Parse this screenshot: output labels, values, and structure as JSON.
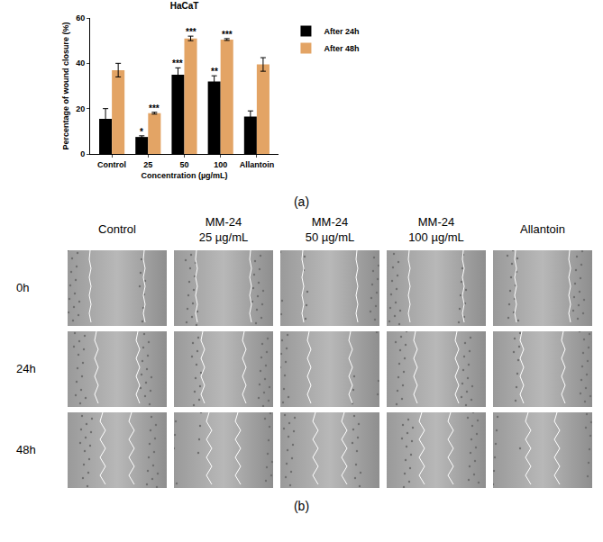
{
  "chart_data": {
    "type": "bar",
    "title": "HaCaT",
    "categories": [
      "Control",
      "25",
      "50",
      "100",
      "Allantoin"
    ],
    "x_label": "Concentration (µg/mL)",
    "y_label": "Percentage of wound closure (%)",
    "ylim": [
      0,
      60
    ],
    "yticks": [
      0,
      20,
      40,
      60
    ],
    "legend": "right",
    "series": [
      {
        "name": "After 24h",
        "color": "#000000",
        "values": [
          15.5,
          7.5,
          35,
          32,
          16.5
        ],
        "errors": [
          4.5,
          0.5,
          3,
          2.5,
          2.5
        ],
        "significance": [
          null,
          "*",
          "***",
          "**",
          null
        ]
      },
      {
        "name": "After 48h",
        "color": "#e3a465",
        "values": [
          37,
          18,
          51,
          50.5,
          39.5
        ],
        "errors": [
          3,
          0.4,
          1,
          0.4,
          3
        ],
        "significance": [
          null,
          "***",
          "***",
          "***",
          null
        ]
      }
    ]
  },
  "panel_a_label": "(a)",
  "image_grid": {
    "columns": [
      [
        "Control"
      ],
      [
        "MM-24",
        "25 µg/mL"
      ],
      [
        "MM-24",
        "50 µg/mL"
      ],
      [
        "MM-24",
        "100 µg/mL"
      ],
      [
        "Allantoin"
      ]
    ],
    "rows": [
      "0h",
      "24h",
      "48h"
    ],
    "panel_label": "(b)"
  }
}
